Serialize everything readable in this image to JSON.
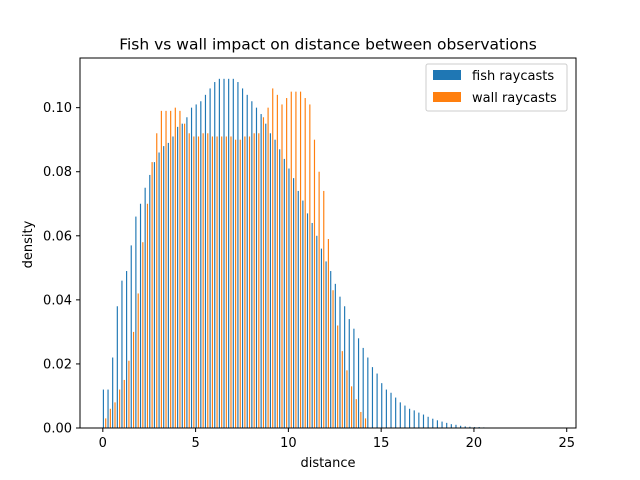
{
  "chart_data": {
    "type": "bar",
    "title": "Fish vs wall impact on distance between observations",
    "xlabel": "distance",
    "ylabel": "density",
    "xlim": [
      -1.23,
      25.5
    ],
    "ylim": [
      0,
      0.1155
    ],
    "xticks": [
      0,
      5,
      10,
      15,
      20,
      25
    ],
    "yticks": [
      0.0,
      0.02,
      0.04,
      0.06,
      0.08,
      0.1
    ],
    "xtick_labels": [
      "0",
      "5",
      "10",
      "15",
      "20",
      "25"
    ],
    "ytick_labels": [
      "0.00",
      "0.02",
      "0.04",
      "0.06",
      "0.08",
      "0.10"
    ],
    "grid": false,
    "legend_position": "top-right",
    "bin_width": 0.25,
    "series": [
      {
        "name": "fish raycasts",
        "color": "#1f77b4",
        "x_start": 0.0,
        "values": [
          0.012,
          0.012,
          0.022,
          0.038,
          0.046,
          0.049,
          0.057,
          0.066,
          0.07,
          0.075,
          0.079,
          0.083,
          0.086,
          0.088,
          0.089,
          0.091,
          0.094,
          0.095,
          0.097,
          0.1,
          0.101,
          0.102,
          0.104,
          0.106,
          0.108,
          0.109,
          0.109,
          0.109,
          0.109,
          0.108,
          0.106,
          0.104,
          0.102,
          0.1,
          0.098,
          0.095,
          0.092,
          0.09,
          0.087,
          0.084,
          0.081,
          0.078,
          0.074,
          0.071,
          0.067,
          0.064,
          0.06,
          0.056,
          0.052,
          0.049,
          0.045,
          0.041,
          0.038,
          0.034,
          0.031,
          0.028,
          0.025,
          0.022,
          0.019,
          0.017,
          0.014,
          0.012,
          0.011,
          0.0095,
          0.008,
          0.007,
          0.006,
          0.0055,
          0.0048,
          0.0042,
          0.0035,
          0.0029,
          0.0024,
          0.002,
          0.0016,
          0.0012,
          0.001,
          0.0007,
          0.0005,
          0.0004,
          0.0003,
          0.0003,
          0.0002
        ]
      },
      {
        "name": "wall raycasts",
        "color": "#ff7f0e",
        "x_start": 0.0,
        "values": [
          0.003,
          0.006,
          0.008,
          0.012,
          0.015,
          0.021,
          0.03,
          0.042,
          0.058,
          0.07,
          0.083,
          0.092,
          0.099,
          0.099,
          0.099,
          0.1,
          0.099,
          0.095,
          0.092,
          0.091,
          0.091,
          0.092,
          0.092,
          0.091,
          0.091,
          0.091,
          0.091,
          0.091,
          0.09,
          0.09,
          0.091,
          0.091,
          0.092,
          0.092,
          0.097,
          0.1,
          0.106,
          0.104,
          0.101,
          0.103,
          0.105,
          0.105,
          0.105,
          0.103,
          0.101,
          0.09,
          0.08,
          0.074,
          0.059,
          0.043,
          0.032,
          0.024,
          0.018,
          0.013,
          0.009,
          0.005,
          0.003
        ]
      }
    ]
  }
}
